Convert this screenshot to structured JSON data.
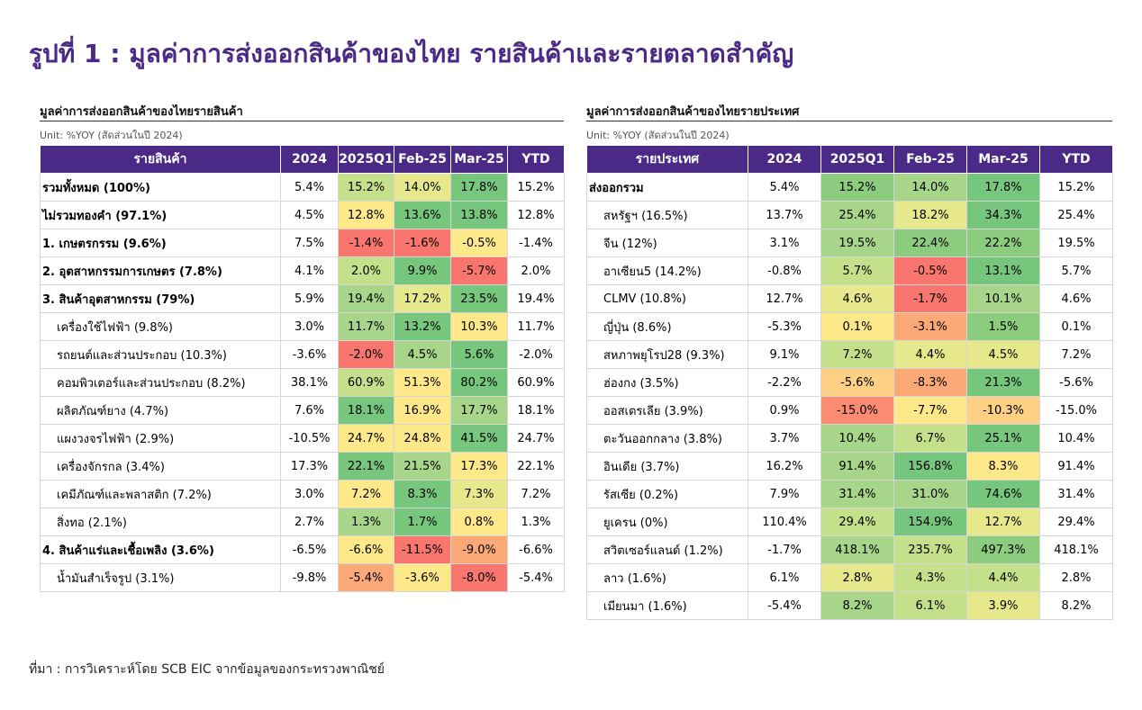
{
  "title": "รูปที่ 1 : มูลค่าการส่งออกสินค้าของไทย รายสินค้าและรายตลาดสำคัญ",
  "source": "ที่มา : การวิเคราะห์โดย SCB EIC จากข้อมูลของกระทรวงพาณิชย์",
  "chart_data": [
    {
      "type": "table",
      "title": "มูลค่าการส่งออกสินค้าของไทยรายสินค้า",
      "unit": "Unit: %YOY (สัดส่วนในปี 2024)",
      "columns": [
        "รายสินค้า",
        "2024",
        "2025Q1",
        "Feb-25",
        "Mar-25",
        "YTD"
      ],
      "rows": [
        {
          "label": "รวมทั้งหมด (100%)",
          "style": "bold",
          "values": [
            "5.4%",
            "15.2%",
            "14.0%",
            "17.8%",
            "15.2%"
          ],
          "colors": [
            "#ffffff",
            "#c5e08a",
            "#e6e88b",
            "#77c67d",
            "#ffffff"
          ]
        },
        {
          "label": "ไม่รวมทองคำ (97.1%)",
          "style": "bold",
          "values": [
            "4.5%",
            "12.8%",
            "13.6%",
            "13.8%",
            "12.8%"
          ],
          "colors": [
            "#ffffff",
            "#fde88a",
            "#77c67d",
            "#77c67d",
            "#ffffff"
          ]
        },
        {
          "label": "1. เกษตรกรรม (9.6%)",
          "style": "bold",
          "values": [
            "7.5%",
            "-1.4%",
            "-1.6%",
            "-0.5%",
            "-1.4%"
          ],
          "colors": [
            "#ffffff",
            "#f8766d",
            "#f8766d",
            "#fde88a",
            "#ffffff"
          ]
        },
        {
          "label": "2. อุตสาหกรรมการเกษตร (7.8%)",
          "style": "bold",
          "values": [
            "4.1%",
            "2.0%",
            "9.9%",
            "-5.7%",
            "2.0%"
          ],
          "colors": [
            "#ffffff",
            "#c5e08a",
            "#77c67d",
            "#f8766d",
            "#ffffff"
          ]
        },
        {
          "label": "3. สินค้าอุตสาหกรรม (79%)",
          "style": "bold",
          "values": [
            "5.9%",
            "19.4%",
            "17.2%",
            "23.5%",
            "19.4%"
          ],
          "colors": [
            "#ffffff",
            "#a7d68a",
            "#e6e88b",
            "#77c67d",
            "#ffffff"
          ]
        },
        {
          "label": "เครื่องใช้ไฟฟ้า (9.8%)",
          "style": "indent",
          "values": [
            "3.0%",
            "11.7%",
            "13.2%",
            "10.3%",
            "11.7%"
          ],
          "colors": [
            "#ffffff",
            "#a7d68a",
            "#77c67d",
            "#fde88a",
            "#ffffff"
          ]
        },
        {
          "label": "รถยนต์และส่วนประกอบ (10.3%)",
          "style": "indent",
          "values": [
            "-3.6%",
            "-2.0%",
            "4.5%",
            "5.6%",
            "-2.0%"
          ],
          "colors": [
            "#ffffff",
            "#f8766d",
            "#a7d68a",
            "#77c67d",
            "#ffffff"
          ]
        },
        {
          "label": "คอมพิวเตอร์และส่วนประกอบ (8.2%)",
          "style": "indent",
          "values": [
            "38.1%",
            "60.9%",
            "51.3%",
            "80.2%",
            "60.9%"
          ],
          "colors": [
            "#ffffff",
            "#c5e08a",
            "#fde88a",
            "#77c67d",
            "#ffffff"
          ]
        },
        {
          "label": "ผลิตภัณฑ์ยาง (4.7%)",
          "style": "indent",
          "values": [
            "7.6%",
            "18.1%",
            "16.9%",
            "17.7%",
            "18.1%"
          ],
          "colors": [
            "#ffffff",
            "#77c67d",
            "#fde88a",
            "#a7d68a",
            "#ffffff"
          ]
        },
        {
          "label": "แผงวงจรไฟฟ้า (2.9%)",
          "style": "indent",
          "values": [
            "-10.5%",
            "24.7%",
            "24.8%",
            "41.5%",
            "24.7%"
          ],
          "colors": [
            "#ffffff",
            "#fde88a",
            "#fde88a",
            "#77c67d",
            "#ffffff"
          ]
        },
        {
          "label": "เครื่องจักรกล (3.4%)",
          "style": "indent",
          "values": [
            "17.3%",
            "22.1%",
            "21.5%",
            "17.3%",
            "22.1%"
          ],
          "colors": [
            "#ffffff",
            "#77c67d",
            "#a7d68a",
            "#fde88a",
            "#ffffff"
          ]
        },
        {
          "label": "เคมีภัณฑ์และพลาสติก (7.2%)",
          "style": "indent",
          "values": [
            "3.0%",
            "7.2%",
            "8.3%",
            "7.3%",
            "7.2%"
          ],
          "colors": [
            "#ffffff",
            "#fde88a",
            "#77c67d",
            "#e6e88b",
            "#ffffff"
          ]
        },
        {
          "label": "สิ่งทอ (2.1%)",
          "style": "indent",
          "values": [
            "2.7%",
            "1.3%",
            "1.7%",
            "0.8%",
            "1.3%"
          ],
          "colors": [
            "#ffffff",
            "#a7d68a",
            "#77c67d",
            "#fde88a",
            "#ffffff"
          ]
        },
        {
          "label": "4. สินค้าแร่และเชื้อเพลิง (3.6%)",
          "style": "bold",
          "values": [
            "-6.5%",
            "-6.6%",
            "-11.5%",
            "-9.0%",
            "-6.6%"
          ],
          "colors": [
            "#ffffff",
            "#fde88a",
            "#f8766d",
            "#fbaa77",
            "#ffffff"
          ]
        },
        {
          "label": "น้ำมันสำเร็จรูป (3.1%)",
          "style": "indent",
          "values": [
            "-9.8%",
            "-5.4%",
            "-3.6%",
            "-8.0%",
            "-5.4%"
          ],
          "colors": [
            "#ffffff",
            "#fbaa77",
            "#fde88a",
            "#f8766d",
            "#ffffff"
          ]
        }
      ]
    },
    {
      "type": "table",
      "title": "มูลค่าการส่งออกสินค้าของไทยรายประเทศ",
      "unit": "Unit: %YOY (สัดส่วนในปี 2024)",
      "columns": [
        "รายประเทศ",
        "2024",
        "2025Q1",
        "Feb-25",
        "Mar-25",
        "YTD"
      ],
      "rows": [
        {
          "label": "ส่งออกรวม",
          "style": "bold",
          "values": [
            "5.4%",
            "15.2%",
            "14.0%",
            "17.8%",
            "15.2%"
          ],
          "colors": [
            "#ffffff",
            "#8ccc7e",
            "#a7d68a",
            "#77c67d",
            "#ffffff"
          ]
        },
        {
          "label": "สหรัฐฯ (16.5%)",
          "style": "indent",
          "values": [
            "13.7%",
            "25.4%",
            "18.2%",
            "34.3%",
            "25.4%"
          ],
          "colors": [
            "#ffffff",
            "#a7d68a",
            "#e6e88b",
            "#77c67d",
            "#ffffff"
          ]
        },
        {
          "label": "จีน (12%)",
          "style": "indent",
          "values": [
            "3.1%",
            "19.5%",
            "22.4%",
            "22.2%",
            "19.5%"
          ],
          "colors": [
            "#ffffff",
            "#a7d68a",
            "#8ccc7e",
            "#8ccc7e",
            "#ffffff"
          ]
        },
        {
          "label": "อาเซียน5 (14.2%)",
          "style": "indent",
          "values": [
            "-0.8%",
            "5.7%",
            "-0.5%",
            "13.1%",
            "5.7%"
          ],
          "colors": [
            "#ffffff",
            "#c5e08a",
            "#f8766d",
            "#77c67d",
            "#ffffff"
          ]
        },
        {
          "label": "CLMV (10.8%)",
          "style": "indent",
          "values": [
            "12.7%",
            "4.6%",
            "-1.7%",
            "10.1%",
            "4.6%"
          ],
          "colors": [
            "#ffffff",
            "#e6e88b",
            "#f8766d",
            "#a7d68a",
            "#ffffff"
          ]
        },
        {
          "label": "ญี่ปุ่น (8.6%)",
          "style": "indent",
          "values": [
            "-5.3%",
            "0.1%",
            "-3.1%",
            "1.5%",
            "0.1%"
          ],
          "colors": [
            "#ffffff",
            "#fde88a",
            "#fbaa77",
            "#8ccc7e",
            "#ffffff"
          ]
        },
        {
          "label": "สหภาพยุโรป28 (9.3%)",
          "style": "indent",
          "values": [
            "9.1%",
            "7.2%",
            "4.4%",
            "4.5%",
            "7.2%"
          ],
          "colors": [
            "#ffffff",
            "#c5e08a",
            "#e6e88b",
            "#e6e88b",
            "#ffffff"
          ]
        },
        {
          "label": "ฮ่องกง (3.5%)",
          "style": "indent",
          "values": [
            "-2.2%",
            "-5.6%",
            "-8.3%",
            "21.3%",
            "-5.6%"
          ],
          "colors": [
            "#ffffff",
            "#fdd085",
            "#fbaa77",
            "#77c67d",
            "#ffffff"
          ]
        },
        {
          "label": "ออสเตรเลีย (3.9%)",
          "style": "indent",
          "values": [
            "0.9%",
            "-15.0%",
            "-7.7%",
            "-10.3%",
            "-15.0%"
          ],
          "colors": [
            "#ffffff",
            "#fb8c72",
            "#fde88a",
            "#fdd085",
            "#ffffff"
          ]
        },
        {
          "label": "ตะวันออกกลาง (3.8%)",
          "style": "indent",
          "values": [
            "3.7%",
            "10.4%",
            "6.7%",
            "25.1%",
            "10.4%"
          ],
          "colors": [
            "#ffffff",
            "#a7d68a",
            "#c5e08a",
            "#77c67d",
            "#ffffff"
          ]
        },
        {
          "label": "อินเดีย (3.7%)",
          "style": "indent",
          "values": [
            "16.2%",
            "91.4%",
            "156.8%",
            "8.3%",
            "91.4%"
          ],
          "colors": [
            "#ffffff",
            "#a7d68a",
            "#77c67d",
            "#fde88a",
            "#ffffff"
          ]
        },
        {
          "label": "รัสเซีย (0.2%)",
          "style": "indent",
          "values": [
            "7.9%",
            "31.4%",
            "31.0%",
            "74.6%",
            "31.4%"
          ],
          "colors": [
            "#ffffff",
            "#a7d68a",
            "#a7d68a",
            "#77c67d",
            "#ffffff"
          ]
        },
        {
          "label": "ยูเครน (0%)",
          "style": "indent",
          "values": [
            "110.4%",
            "29.4%",
            "154.9%",
            "12.7%",
            "29.4%"
          ],
          "colors": [
            "#ffffff",
            "#c5e08a",
            "#77c67d",
            "#e6e88b",
            "#ffffff"
          ]
        },
        {
          "label": "สวิตเซอร์แลนด์ (1.2%)",
          "style": "indent",
          "values": [
            "-1.7%",
            "418.1%",
            "235.7%",
            "497.3%",
            "418.1%"
          ],
          "colors": [
            "#ffffff",
            "#a7d68a",
            "#c5e08a",
            "#8ccc7e",
            "#ffffff"
          ]
        },
        {
          "label": "ลาว (1.6%)",
          "style": "indent",
          "values": [
            "6.1%",
            "2.8%",
            "4.3%",
            "4.4%",
            "2.8%"
          ],
          "colors": [
            "#ffffff",
            "#e6e88b",
            "#c5e08a",
            "#c5e08a",
            "#ffffff"
          ]
        },
        {
          "label": "เมียนมา (1.6%)",
          "style": "indent",
          "values": [
            "-5.4%",
            "8.2%",
            "6.1%",
            "3.9%",
            "8.2%"
          ],
          "colors": [
            "#ffffff",
            "#a7d68a",
            "#c5e08a",
            "#e6e88b",
            "#ffffff"
          ]
        }
      ]
    }
  ]
}
